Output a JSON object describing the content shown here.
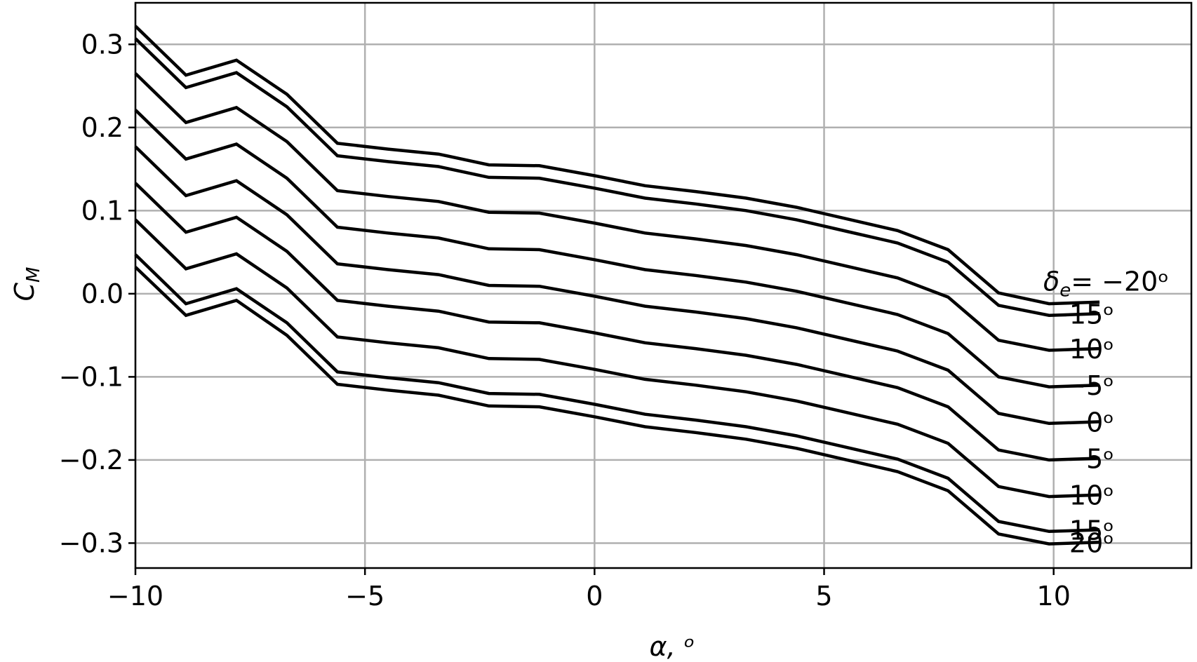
{
  "chart_data": {
    "type": "line",
    "xlabel": "α, ᵒ",
    "ylabel": "C_M",
    "xlim": [
      -10,
      13
    ],
    "ylim": [
      -0.33,
      0.35
    ],
    "xticks": [
      -10,
      -5,
      0,
      5,
      10
    ],
    "xtick_labels": [
      "−10",
      "−5",
      "0",
      "5",
      "10"
    ],
    "yticks": [
      0.3,
      0.2,
      0.1,
      0.0,
      -0.1,
      -0.2,
      -0.3
    ],
    "ytick_labels": [
      "0.3",
      "0.2",
      "0.1",
      "0.0",
      "−0.1",
      "−0.2",
      "−0.3"
    ],
    "grid": true,
    "line_color": "#000000",
    "grid_color": "#b0b0b0",
    "x": [
      -10,
      -8.9,
      -7.8,
      -6.7,
      -5.6,
      -4.5,
      -3.4,
      -2.3,
      -1.2,
      0,
      1.1,
      2.2,
      3.3,
      4.4,
      5.5,
      6.6,
      7.7,
      8.8,
      9.9,
      11
    ],
    "series": [
      {
        "name": "δe=−20ᵒ",
        "display_label": "δ_e = −20ᵒ",
        "values": [
          0.322,
          0.263,
          0.281,
          0.24,
          0.181,
          0.174,
          0.168,
          0.155,
          0.154,
          0.142,
          0.13,
          0.123,
          0.115,
          0.104,
          0.09,
          0.076,
          0.053,
          0.001,
          -0.012,
          -0.01
        ]
      },
      {
        "name": "−15ᵒ",
        "display_label": "−15ᵒ",
        "values": [
          0.307,
          0.248,
          0.266,
          0.225,
          0.166,
          0.159,
          0.153,
          0.14,
          0.139,
          0.127,
          0.115,
          0.108,
          0.1,
          0.089,
          0.075,
          0.061,
          0.038,
          -0.014,
          -0.026,
          -0.024
        ]
      },
      {
        "name": "−10ᵒ",
        "display_label": "−10ᵒ",
        "values": [
          0.265,
          0.206,
          0.224,
          0.183,
          0.124,
          0.117,
          0.111,
          0.098,
          0.097,
          0.085,
          0.073,
          0.066,
          0.058,
          0.047,
          0.033,
          0.019,
          -0.004,
          -0.056,
          -0.068,
          -0.066
        ]
      },
      {
        "name": "−5ᵒ",
        "display_label": "−5ᵒ",
        "values": [
          0.221,
          0.162,
          0.18,
          0.139,
          0.08,
          0.073,
          0.067,
          0.054,
          0.053,
          0.041,
          0.029,
          0.022,
          0.014,
          0.003,
          -0.011,
          -0.025,
          -0.048,
          -0.1,
          -0.112,
          -0.11
        ]
      },
      {
        "name": "0ᵒ",
        "display_label": "0ᵒ",
        "values": [
          0.177,
          0.118,
          0.136,
          0.095,
          0.036,
          0.029,
          0.023,
          0.01,
          0.009,
          -0.003,
          -0.015,
          -0.022,
          -0.03,
          -0.041,
          -0.055,
          -0.069,
          -0.092,
          -0.144,
          -0.156,
          -0.154
        ]
      },
      {
        "name": "5ᵒ",
        "display_label": "5ᵒ",
        "values": [
          0.133,
          0.074,
          0.092,
          0.051,
          -0.008,
          -0.015,
          -0.021,
          -0.034,
          -0.035,
          -0.047,
          -0.059,
          -0.066,
          -0.074,
          -0.085,
          -0.099,
          -0.113,
          -0.136,
          -0.188,
          -0.2,
          -0.198
        ]
      },
      {
        "name": "10ᵒ",
        "display_label": "10ᵒ",
        "values": [
          0.089,
          0.03,
          0.048,
          0.007,
          -0.052,
          -0.059,
          -0.065,
          -0.078,
          -0.079,
          -0.091,
          -0.103,
          -0.11,
          -0.118,
          -0.129,
          -0.143,
          -0.157,
          -0.18,
          -0.232,
          -0.244,
          -0.242
        ]
      },
      {
        "name": "15ᵒ",
        "display_label": "15ᵒ",
        "values": [
          0.047,
          -0.012,
          0.006,
          -0.035,
          -0.094,
          -0.101,
          -0.107,
          -0.12,
          -0.121,
          -0.133,
          -0.145,
          -0.152,
          -0.16,
          -0.171,
          -0.185,
          -0.199,
          -0.222,
          -0.274,
          -0.286,
          -0.284
        ]
      },
      {
        "name": "20ᵒ",
        "display_label": "20ᵒ",
        "values": [
          0.032,
          -0.026,
          -0.008,
          -0.05,
          -0.109,
          -0.116,
          -0.122,
          -0.135,
          -0.136,
          -0.148,
          -0.16,
          -0.167,
          -0.175,
          -0.186,
          -0.2,
          -0.214,
          -0.237,
          -0.289,
          -0.301,
          -0.299
        ]
      }
    ]
  }
}
